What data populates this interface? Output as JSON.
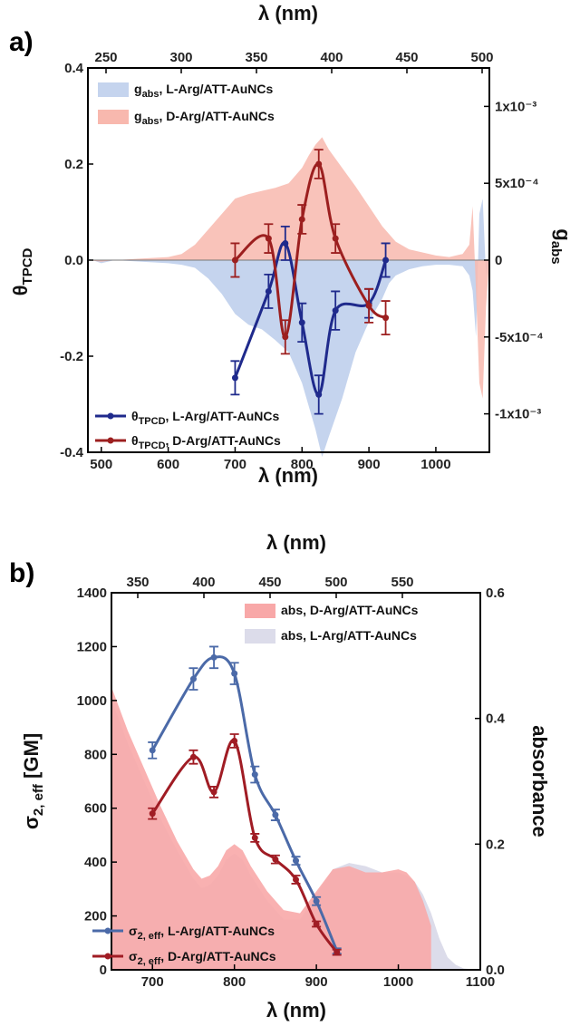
{
  "panel_labels": [
    "a)",
    "b)"
  ],
  "chart_data": [
    {
      "type": "line",
      "panel": "a)",
      "xlabel": "λ (nm)",
      "x2label": "λ (nm)",
      "ylabel": "θ",
      "ylabel_sub": "TPCD",
      "y2label": "g",
      "y2label_sub": "abs",
      "xlim": [
        480,
        1080
      ],
      "xticks": [
        500,
        600,
        700,
        800,
        900,
        1000
      ],
      "x2ticks": [
        250,
        300,
        350,
        400,
        450,
        500
      ],
      "ylim": [
        -0.4,
        0.4
      ],
      "yticks": [
        -0.4,
        -0.2,
        0.0,
        0.2,
        0.4
      ],
      "ytick_labels": [
        "-0.4",
        "-0.2",
        "0.0",
        "0.2",
        "0.4"
      ],
      "y2lim": [
        -0.00125,
        0.00125
      ],
      "y2ticks": [
        -0.001,
        -0.0005,
        0,
        0.0005,
        0.001
      ],
      "y2tick_labels": [
        "-1x10⁻³",
        "-5x10⁻⁴",
        "0",
        "5x10⁻⁴",
        "1x10⁻³"
      ],
      "legend_top": [
        {
          "text": "g",
          "sub": "abs",
          "suffix": ", L-Arg/ATT-AuNCs",
          "color": "#c5d4ee"
        },
        {
          "text": "g",
          "sub": "abs",
          "suffix": ", D-Arg/ATT-AuNCs",
          "color": "#f8b8ae"
        }
      ],
      "legend_bottom": [
        {
          "text": "θ",
          "sub": "TPCD",
          "suffix": ", L-Arg/ATT-AuNCs",
          "color": "#1f2a8c"
        },
        {
          "text": "θ",
          "sub": "TPCD",
          "suffix": ", D-Arg/ATT-AuNCs",
          "color": "#9c1f1f"
        }
      ],
      "areas": [
        {
          "name": "gabs L-Arg/ATT-AuNCs",
          "color": "#c5d4ee",
          "axis": "right",
          "x": [
            480,
            500,
            520,
            560,
            600,
            620,
            640,
            660,
            680,
            700,
            720,
            740,
            760,
            780,
            800,
            820,
            830,
            840,
            860,
            880,
            900,
            920,
            930,
            940,
            960,
            980,
            1000,
            1020,
            1040,
            1050,
            1055,
            1060,
            1065,
            1070,
            1075,
            1080
          ],
          "y": [
            1e-05,
            -2e-05,
            0,
            -1e-05,
            -2e-05,
            -3e-05,
            -5e-05,
            -0.00012,
            -0.00022,
            -0.00035,
            -0.00042,
            -0.00045,
            -0.00052,
            -0.0006,
            -0.0008,
            -0.0011,
            -0.00128,
            -0.00115,
            -0.0009,
            -0.0006,
            -0.0004,
            -0.00025,
            -0.00015,
            -0.0001,
            -6e-05,
            -4e-05,
            -3e-05,
            -3e-05,
            -4e-05,
            -0.0001,
            -0.0002,
            -0.0005,
            0.0003,
            0.0004,
            -0.0001,
            0
          ]
        },
        {
          "name": "gabs D-Arg/ATT-AuNCs",
          "color": "#f8b8ae",
          "axis": "right",
          "x": [
            480,
            500,
            520,
            560,
            600,
            620,
            640,
            660,
            680,
            700,
            720,
            740,
            760,
            780,
            800,
            810,
            820,
            830,
            840,
            860,
            880,
            900,
            920,
            940,
            960,
            980,
            1000,
            1020,
            1040,
            1050,
            1055,
            1060,
            1065,
            1070,
            1075,
            1080
          ],
          "y": [
            0,
            -1e-05,
            0,
            1e-05,
            2e-05,
            4e-05,
            0.0001,
            0.0002,
            0.0003,
            0.0004,
            0.00043,
            0.00045,
            0.00047,
            0.0005,
            0.0006,
            0.00068,
            0.00075,
            0.0008,
            0.00072,
            0.0006,
            0.00048,
            0.00035,
            0.00022,
            0.00012,
            7e-05,
            5e-05,
            3e-05,
            2e-05,
            4e-05,
            0.0001,
            0.00035,
            -0.0002,
            -0.0008,
            -0.0009,
            -0.0003,
            0
          ]
        }
      ],
      "series": [
        {
          "name": "θTPCD, L-Arg/ATT-AuNCs",
          "color": "#1f2a8c",
          "x": [
            700,
            750,
            775,
            800,
            825,
            850,
            900,
            925
          ],
          "y": [
            -0.245,
            -0.065,
            0.035,
            -0.13,
            -0.28,
            -0.105,
            -0.09,
            0.0
          ],
          "err": [
            0.035,
            0.035,
            0.035,
            0.04,
            0.04,
            0.04,
            0.03,
            0.035
          ]
        },
        {
          "name": "θTPCD, D-Arg/ATT-AuNCs",
          "color": "#9c1f1f",
          "x": [
            700,
            750,
            775,
            800,
            825,
            850,
            900,
            925
          ],
          "y": [
            0.0,
            0.045,
            -0.16,
            0.085,
            0.2,
            0.045,
            -0.095,
            -0.12
          ],
          "err": [
            0.035,
            0.03,
            0.035,
            0.03,
            0.03,
            0.03,
            0.035,
            0.035
          ]
        }
      ]
    },
    {
      "type": "line",
      "panel": "b)",
      "xlabel": "λ (nm)",
      "x2label": "λ (nm)",
      "ylabel": "σ",
      "ylabel_sub": "2, eff",
      "ylabel_suffix": " [GM]",
      "y2label": "absorbance",
      "xlim": [
        650,
        1100
      ],
      "xticks": [
        700,
        800,
        900,
        1000,
        1100
      ],
      "x2ticks": [
        350,
        400,
        450,
        500,
        550
      ],
      "ylim": [
        0,
        1400
      ],
      "yticks": [
        0,
        200,
        400,
        600,
        800,
        1000,
        1200,
        1400
      ],
      "y2lim": [
        0,
        0.6
      ],
      "y2ticks": [
        0.0,
        0.2,
        0.4,
        0.6
      ],
      "y2tick_labels": [
        "0.0",
        "0.2",
        "0.4",
        "0.6"
      ],
      "legend_top": [
        {
          "text": "abs, D-Arg/ATT-AuNCs",
          "color": "#f8a8a8"
        },
        {
          "text": "abs, L-Arg/ATT-AuNCs",
          "color": "#dcdcea"
        }
      ],
      "legend_bottom": [
        {
          "text": "σ",
          "sub": "2, eff",
          "suffix": ", L-Arg/ATT-AuNCs",
          "color": "#4b6aa8"
        },
        {
          "text": "σ",
          "sub": "2, eff",
          "suffix": ", D-Arg/ATT-AuNCs",
          "color": "#a01c24"
        }
      ],
      "areas": [
        {
          "name": "abs, L-Arg/ATT-AuNCs",
          "color": "#dcdcea",
          "axis": "right",
          "x": [
            650,
            670,
            690,
            710,
            730,
            750,
            760,
            770,
            780,
            790,
            800,
            810,
            820,
            840,
            860,
            880,
            900,
            920,
            940,
            960,
            980,
            1000,
            1010,
            1020,
            1030,
            1040,
            1050,
            1060,
            1070,
            1080,
            1100
          ],
          "y": [
            0.43,
            0.36,
            0.3,
            0.24,
            0.19,
            0.145,
            0.13,
            0.135,
            0.15,
            0.175,
            0.185,
            0.175,
            0.15,
            0.11,
            0.08,
            0.08,
            0.12,
            0.16,
            0.17,
            0.165,
            0.155,
            0.155,
            0.15,
            0.14,
            0.12,
            0.09,
            0.05,
            0.02,
            0.008,
            0.002,
            0.0
          ]
        },
        {
          "name": "abs, D-Arg/ATT-AuNCs",
          "color": "#f8a8a8",
          "axis": "right",
          "x": [
            650,
            670,
            690,
            710,
            730,
            750,
            760,
            770,
            780,
            790,
            800,
            810,
            820,
            840,
            860,
            880,
            900,
            920,
            940,
            960,
            980,
            1000,
            1010,
            1020,
            1030,
            1040
          ],
          "y": [
            0.45,
            0.38,
            0.32,
            0.26,
            0.205,
            0.16,
            0.145,
            0.15,
            0.165,
            0.19,
            0.2,
            0.19,
            0.165,
            0.125,
            0.095,
            0.09,
            0.125,
            0.16,
            0.165,
            0.155,
            0.155,
            0.16,
            0.155,
            0.14,
            0.11,
            0.07
          ]
        }
      ],
      "series": [
        {
          "name": "σ2,eff, L-Arg/ATT-AuNCs",
          "color": "#4b6aa8",
          "x": [
            700,
            750,
            775,
            800,
            825,
            850,
            875,
            900,
            925
          ],
          "y": [
            815,
            1080,
            1160,
            1100,
            725,
            575,
            405,
            255,
            70
          ],
          "err": [
            30,
            40,
            40,
            40,
            30,
            20,
            15,
            15,
            10
          ]
        },
        {
          "name": "σ2,eff, D-Arg/ATT-AuNCs",
          "color": "#a01c24",
          "x": [
            700,
            750,
            775,
            800,
            825,
            850,
            875,
            900,
            925
          ],
          "y": [
            580,
            790,
            660,
            850,
            490,
            410,
            335,
            170,
            65
          ],
          "err": [
            20,
            25,
            20,
            25,
            15,
            15,
            15,
            10,
            10
          ]
        }
      ]
    }
  ]
}
